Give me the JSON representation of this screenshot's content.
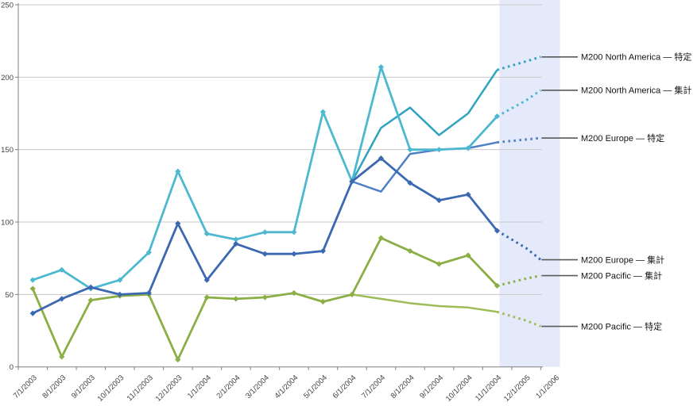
{
  "chart_data": {
    "type": "line",
    "title": "",
    "grid": true,
    "legend_position": "right-callouts",
    "x_axis": {
      "categories": [
        "7/1/2003",
        "8/1/2003",
        "9/1/2003",
        "10/1/2003",
        "11/1/2003",
        "12/1/2003",
        "1/1/2004",
        "2/1/2004",
        "3/1/2004",
        "4/1/2004",
        "5/1/2004",
        "6/1/2004",
        "7/1/2004",
        "8/1/2004",
        "9/1/2004",
        "10/1/2004",
        "11/1/2004",
        "12/1/2005",
        "1/1/2006"
      ]
    },
    "y_axis": {
      "min": 0,
      "max": 250,
      "ticks": [
        0,
        50,
        100,
        150,
        200,
        250
      ]
    },
    "forecast_region": {
      "after_category": "11/1/2004",
      "color": "#E4EAF9"
    },
    "colors": {
      "gridline": "#C8C8C8",
      "axis": "#808080",
      "leader_line": "#5A5A5A",
      "tick_label": "#404040"
    },
    "series": [
      {
        "name": "M200 North America — 特定",
        "color": "#2FA4BE",
        "markers": false,
        "start_index": 11,
        "values": [
          128,
          165,
          179,
          160,
          175,
          205
        ],
        "forecast": [
          [
            16,
            205
          ],
          [
            17,
            211
          ],
          [
            17.5,
            214
          ]
        ]
      },
      {
        "name": "M200 Pacific — 特定",
        "color": "#9CBD58",
        "markers": false,
        "start_index": 11,
        "values": [
          50,
          47,
          44,
          42,
          41,
          38
        ],
        "forecast": [
          [
            16,
            38
          ],
          [
            17,
            32
          ],
          [
            17.5,
            28
          ]
        ]
      },
      {
        "name": "M200 Europe — 特定",
        "color": "#4E80C4",
        "markers": false,
        "start_index": 11,
        "values": [
          128,
          121,
          147,
          150,
          151,
          155
        ],
        "forecast": [
          [
            16,
            155
          ],
          [
            17,
            157
          ],
          [
            17.5,
            158
          ]
        ]
      },
      {
        "name": "M200 Pacific — 集計",
        "color": "#8BAE45",
        "markers": true,
        "start_index": 0,
        "values": [
          54,
          7,
          46,
          49,
          50,
          5,
          48,
          47,
          48,
          51,
          45,
          50,
          89,
          80,
          71,
          77,
          56
        ],
        "forecast": [
          [
            16,
            56
          ],
          [
            17,
            61
          ],
          [
            17.5,
            63
          ]
        ]
      },
      {
        "name": "M200 North America — 集計",
        "color": "#4DB8CF",
        "markers": true,
        "start_index": 0,
        "values": [
          60,
          67,
          54,
          60,
          79,
          135,
          92,
          88,
          93,
          93,
          176,
          128,
          207,
          150,
          150,
          151,
          173
        ],
        "forecast": [
          [
            16,
            173
          ],
          [
            17,
            184
          ],
          [
            17.5,
            191
          ]
        ]
      },
      {
        "name": "M200 Europe — 集計",
        "color": "#3B68B0",
        "markers": true,
        "start_index": 0,
        "values": [
          37,
          47,
          55,
          50,
          51,
          99,
          60,
          85,
          78,
          78,
          80,
          128,
          144,
          127,
          115,
          119,
          94
        ],
        "forecast": [
          [
            16,
            94
          ],
          [
            17,
            82
          ],
          [
            17.5,
            74
          ]
        ]
      }
    ],
    "callout_labels": [
      "M200 North America — 特定",
      "M200 North America — 集計",
      "M200 Europe — 特定",
      "M200 Europe — 集計",
      "M200 Pacific — 集計",
      "M200 Pacific — 特定"
    ]
  }
}
